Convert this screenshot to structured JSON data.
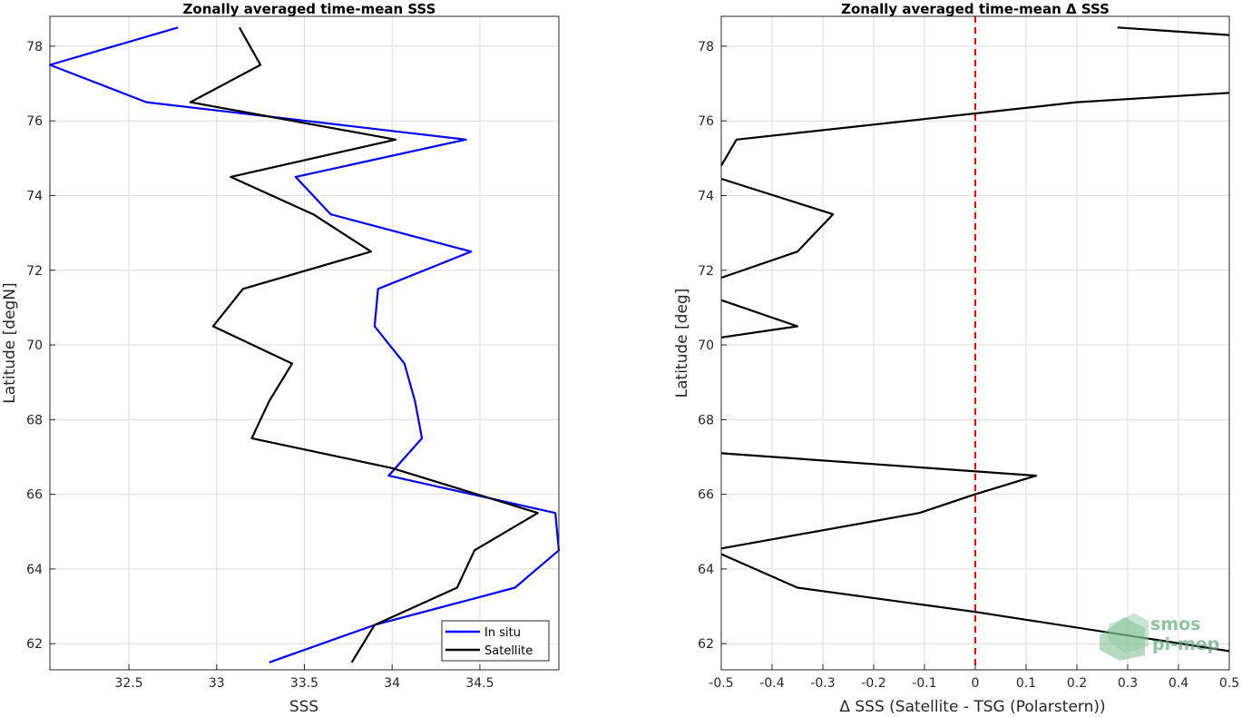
{
  "chart_data": [
    {
      "type": "line",
      "title": "Zonally averaged time-mean SSS",
      "xlabel": "SSS",
      "ylabel": "Latitude [degN]",
      "xlim": [
        32.05,
        34.95
      ],
      "ylim": [
        61.3,
        78.8
      ],
      "xticks": [
        "32.5",
        "33",
        "33.5",
        "34",
        "34.5"
      ],
      "xtick_values": [
        32.5,
        33,
        33.5,
        34,
        34.5
      ],
      "yticks": [
        "62",
        "64",
        "66",
        "68",
        "70",
        "72",
        "74",
        "76",
        "78"
      ],
      "ytick_values": [
        62,
        64,
        66,
        68,
        70,
        72,
        74,
        76,
        78
      ],
      "grid": true,
      "legend_position": "bottom-right",
      "series": [
        {
          "name": "In situ",
          "color": "#0000ff",
          "points": [
            [
              32.78,
              78.5
            ],
            [
              32.05,
              77.5
            ],
            [
              32.6,
              76.5
            ],
            [
              34.42,
              75.5
            ],
            [
              33.45,
              74.5
            ],
            [
              33.65,
              73.5
            ],
            [
              34.45,
              72.5
            ],
            [
              33.92,
              71.5
            ],
            [
              33.9,
              70.5
            ],
            [
              34.07,
              69.5
            ],
            [
              34.13,
              68.5
            ],
            [
              34.17,
              67.5
            ],
            [
              33.98,
              66.5
            ],
            [
              34.93,
              65.5
            ],
            [
              34.95,
              64.5
            ],
            [
              34.7,
              63.5
            ],
            [
              33.9,
              62.5
            ],
            [
              33.3,
              61.5
            ]
          ]
        },
        {
          "name": "Satellite",
          "color": "#000000",
          "points": [
            [
              33.13,
              78.5
            ],
            [
              33.25,
              77.5
            ],
            [
              32.85,
              76.5
            ],
            [
              34.02,
              75.5
            ],
            [
              33.08,
              74.5
            ],
            [
              33.55,
              73.5
            ],
            [
              33.88,
              72.5
            ],
            [
              33.15,
              71.5
            ],
            [
              32.98,
              70.5
            ],
            [
              33.43,
              69.5
            ],
            [
              33.3,
              68.5
            ],
            [
              33.2,
              67.5
            ],
            [
              34.0,
              66.7
            ],
            [
              34.83,
              65.5
            ],
            [
              34.47,
              64.5
            ],
            [
              34.37,
              63.5
            ],
            [
              33.9,
              62.5
            ],
            [
              33.77,
              61.5
            ]
          ]
        }
      ]
    },
    {
      "type": "line",
      "title": "Zonally averaged time-mean Δ SSS",
      "xlabel": "Δ SSS (Satellite - TSG (Polarstern))",
      "ylabel": "Latitude [deg]",
      "xlim": [
        -0.5,
        0.5
      ],
      "ylim": [
        61.3,
        78.8
      ],
      "xticks": [
        "-0.5",
        "-0.4",
        "-0.3",
        "-0.2",
        "-0.1",
        "0",
        "0.1",
        "0.2",
        "0.3",
        "0.4",
        "0.5"
      ],
      "xtick_values": [
        -0.5,
        -0.4,
        -0.3,
        -0.2,
        -0.1,
        0,
        0.1,
        0.2,
        0.3,
        0.4,
        0.5
      ],
      "yticks": [
        "62",
        "64",
        "66",
        "68",
        "70",
        "72",
        "74",
        "76",
        "78"
      ],
      "ytick_values": [
        62,
        64,
        66,
        68,
        70,
        72,
        74,
        76,
        78
      ],
      "grid": true,
      "reference_line": {
        "x": 0,
        "color": "#ff0000",
        "style": "dashed"
      },
      "series": [
        {
          "color": "#000000",
          "segments": [
            [
              [
                0.28,
                78.5
              ],
              [
                0.5,
                78.3
              ]
            ],
            [
              [
                0.5,
                76.75
              ],
              [
                0.2,
                76.5
              ],
              [
                0.0,
                76.2
              ],
              [
                -0.47,
                75.5
              ],
              [
                -0.5,
                74.8
              ]
            ],
            [
              [
                -0.5,
                74.45
              ],
              [
                -0.28,
                73.5
              ],
              [
                -0.35,
                72.5
              ],
              [
                -0.5,
                71.8
              ]
            ],
            [
              [
                -0.5,
                71.2
              ],
              [
                -0.35,
                70.5
              ],
              [
                -0.5,
                70.2
              ]
            ],
            [
              [
                -0.5,
                67.1
              ],
              [
                0.12,
                66.5
              ],
              [
                0.0,
                66.0
              ],
              [
                -0.11,
                65.5
              ],
              [
                -0.5,
                64.55
              ]
            ],
            [
              [
                -0.5,
                64.4
              ],
              [
                -0.35,
                63.5
              ],
              [
                0.0,
                62.85
              ],
              [
                0.5,
                61.8
              ]
            ]
          ]
        }
      ]
    }
  ],
  "watermark": {
    "line1": "smos",
    "line2": "pi-mep"
  }
}
